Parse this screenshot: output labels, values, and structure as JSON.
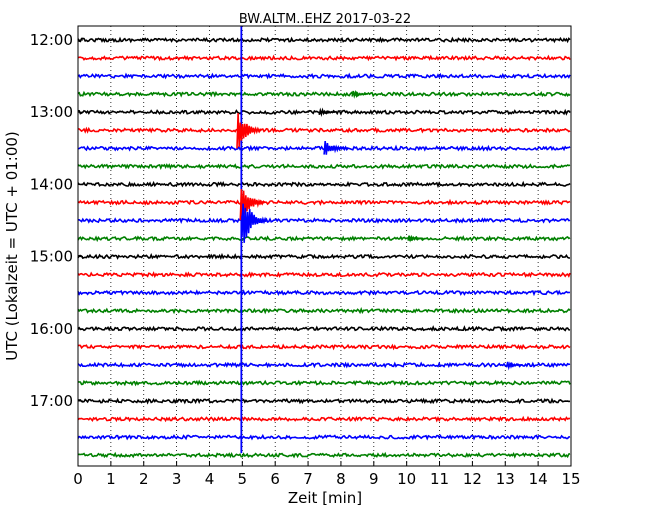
{
  "chart_data": {
    "type": "line",
    "title": "BW.ALTM..EHZ 2017-03-22",
    "xlabel": "Zeit  [min]",
    "ylabel": "UTC (Lokalzeit = UTC + 01:00)",
    "xlim": [
      0,
      15
    ],
    "x_ticks": [
      "0",
      "1",
      "2",
      "3",
      "4",
      "5",
      "6",
      "7",
      "8",
      "9",
      "10",
      "11",
      "12",
      "13",
      "14",
      "15"
    ],
    "y_ticks": [
      {
        "label": "12:00",
        "row": 0
      },
      {
        "label": "13:00",
        "row": 4
      },
      {
        "label": "14:00",
        "row": 8
      },
      {
        "label": "15:00",
        "row": 12
      },
      {
        "label": "16:00",
        "row": 16
      },
      {
        "label": "17:00",
        "row": 20
      }
    ],
    "grid": "vertical dotted at each minute",
    "trace_colors": [
      "#000000",
      "#ff0000",
      "#0000ff",
      "#008000"
    ],
    "series": [
      {
        "start": "12:00",
        "color": "#000000"
      },
      {
        "start": "12:15",
        "color": "#ff0000"
      },
      {
        "start": "12:30",
        "color": "#0000ff"
      },
      {
        "start": "12:45",
        "color": "#008000"
      },
      {
        "start": "13:00",
        "color": "#000000"
      },
      {
        "start": "13:15",
        "color": "#ff0000"
      },
      {
        "start": "13:30",
        "color": "#0000ff"
      },
      {
        "start": "13:45",
        "color": "#008000"
      },
      {
        "start": "14:00",
        "color": "#000000"
      },
      {
        "start": "14:15",
        "color": "#ff0000"
      },
      {
        "start": "14:30",
        "color": "#0000ff"
      },
      {
        "start": "14:45",
        "color": "#008000"
      },
      {
        "start": "15:00",
        "color": "#000000"
      },
      {
        "start": "15:15",
        "color": "#ff0000"
      },
      {
        "start": "15:30",
        "color": "#0000ff"
      },
      {
        "start": "15:45",
        "color": "#008000"
      },
      {
        "start": "16:00",
        "color": "#000000"
      },
      {
        "start": "16:15",
        "color": "#ff0000"
      },
      {
        "start": "16:30",
        "color": "#0000ff"
      },
      {
        "start": "16:45",
        "color": "#008000"
      },
      {
        "start": "17:00",
        "color": "#000000"
      },
      {
        "start": "17:15",
        "color": "#ff0000"
      },
      {
        "start": "17:30",
        "color": "#0000ff"
      },
      {
        "start": "17:45",
        "color": "#008000"
      }
    ],
    "events": [
      {
        "row": 5,
        "minute": 4.9,
        "amplitude": "large"
      },
      {
        "row": 6,
        "minute": 7.55,
        "amplitude": "medium"
      },
      {
        "row": 9,
        "minute": 5.0,
        "amplitude": "large"
      },
      {
        "row": 10,
        "minute": 5.05,
        "amplitude": "very large"
      },
      {
        "row": 4,
        "minute": 7.4,
        "amplitude": "small"
      },
      {
        "row": 3,
        "minute": 8.4,
        "amplitude": "small"
      },
      {
        "row": 11,
        "minute": 10.1,
        "amplitude": "small"
      },
      {
        "row": 18,
        "minute": 13.1,
        "amplitude": "small"
      }
    ]
  }
}
